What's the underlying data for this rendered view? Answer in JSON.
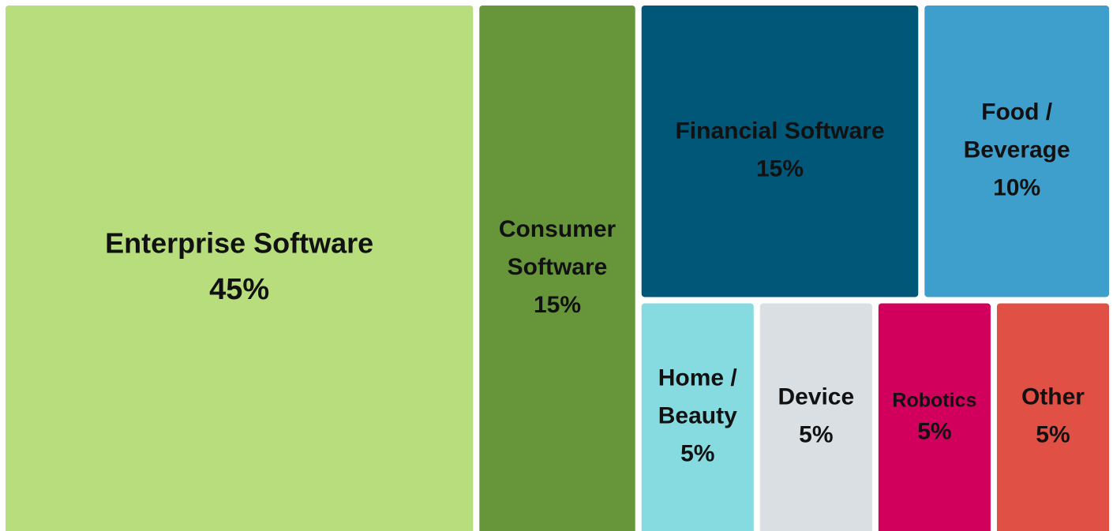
{
  "chart_data": {
    "type": "treemap",
    "categories": [
      "Enterprise Software",
      "Consumer Software",
      "Financial Software",
      "Food / Beverage",
      "Home / Beauty",
      "Device",
      "Robotics",
      "Other"
    ],
    "values": [
      45,
      15,
      15,
      10,
      5,
      5,
      5,
      5
    ],
    "value_labels": [
      "45%",
      "15%",
      "15%",
      "10%",
      "5%",
      "5%",
      "5%",
      "5%"
    ],
    "colors": [
      "#b8dd7c",
      "#67963a",
      "#005778",
      "#3f9fcc",
      "#86dbe0",
      "#d9dfe2",
      "#d1005d",
      "#e05045"
    ]
  }
}
